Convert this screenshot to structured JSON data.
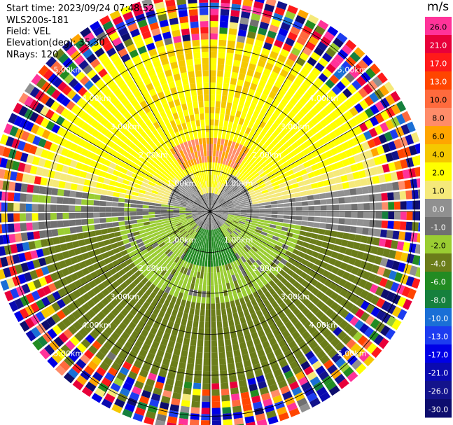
{
  "info": {
    "start_time": "Start time: 2023/09/24 07:48:52",
    "instrument": "WLS200s-181",
    "field": "Field: VEL",
    "elevation": "Elevation(deg): 35.30",
    "nrays": "NRays: 120"
  },
  "chart_data": {
    "type": "heatmap",
    "projection": "polar (PPI scan)",
    "field": "VEL",
    "units": "m/s",
    "nrays": 120,
    "range_rings_km": [
      1,
      2,
      3,
      4,
      5
    ],
    "range_ring_labels": [
      "1.00km",
      "2.00km",
      "3.00km",
      "4.00km",
      "5.00km"
    ],
    "spoke_angles_deg": [
      0,
      30,
      60,
      90,
      120,
      150,
      180,
      210,
      240,
      270,
      300,
      330
    ],
    "colorbar": {
      "title": "m/s",
      "tick_labels": [
        "26.0",
        "21.0",
        "17.0",
        "13.0",
        "10.0",
        "8.0",
        "6.0",
        "4.0",
        "2.0",
        "1.0",
        "0.0",
        "-1.0",
        "-2.0",
        "-4.0",
        "-6.0",
        "-8.0",
        "-10.0",
        "-13.0",
        "-17.0",
        "-21.0",
        "-26.0",
        "-30.0"
      ],
      "bands": [
        {
          "from": -30,
          "to": -26,
          "color": "#0d0d6e"
        },
        {
          "from": -26,
          "to": -21,
          "color": "#13138c"
        },
        {
          "from": -21,
          "to": -17,
          "color": "#0a0ab0"
        },
        {
          "from": -17,
          "to": -13,
          "color": "#0000e6"
        },
        {
          "from": -13,
          "to": -10,
          "color": "#1c3cf0"
        },
        {
          "from": -10,
          "to": -8,
          "color": "#1a6fd6"
        },
        {
          "from": -8,
          "to": -6,
          "color": "#15803d"
        },
        {
          "from": -6,
          "to": -4,
          "color": "#228b22"
        },
        {
          "from": -4,
          "to": -2,
          "color": "#6b7d1a"
        },
        {
          "from": -2,
          "to": -1,
          "color": "#9acd32"
        },
        {
          "from": -1,
          "to": 0,
          "color": "#707070"
        },
        {
          "from": 0,
          "to": 1,
          "color": "#909090"
        },
        {
          "from": 1,
          "to": 2,
          "color": "#f5e97a"
        },
        {
          "from": 2,
          "to": 4,
          "color": "#ffff00"
        },
        {
          "from": 4,
          "to": 6,
          "color": "#f5c800"
        },
        {
          "from": 6,
          "to": 8,
          "color": "#ffa500"
        },
        {
          "from": 8,
          "to": 10,
          "color": "#ff8c69"
        },
        {
          "from": 10,
          "to": 13,
          "color": "#ff6a3d"
        },
        {
          "from": 13,
          "to": 17,
          "color": "#ff4500"
        },
        {
          "from": 17,
          "to": 21,
          "color": "#ff1a1a"
        },
        {
          "from": 21,
          "to": 26,
          "color": "#e8003a"
        },
        {
          "from": 26,
          "to": 30,
          "color": "#ff3399"
        }
      ]
    },
    "velocity_field": {
      "gates_per_ray": 36,
      "gate_km": 0.15,
      "description": "near-centre: 0 m/s (grey); north inner (2.0–4.5 km): +2 to +4 (yellow) with +6 to +10 (orange) patch ~1.5 km north; south (0.3–2 km): -2 (light green) to -6 (dark green); south outer (2–4.5 km): -4 (olive); beyond ~4.5 km: noisy multicolour"
    }
  }
}
